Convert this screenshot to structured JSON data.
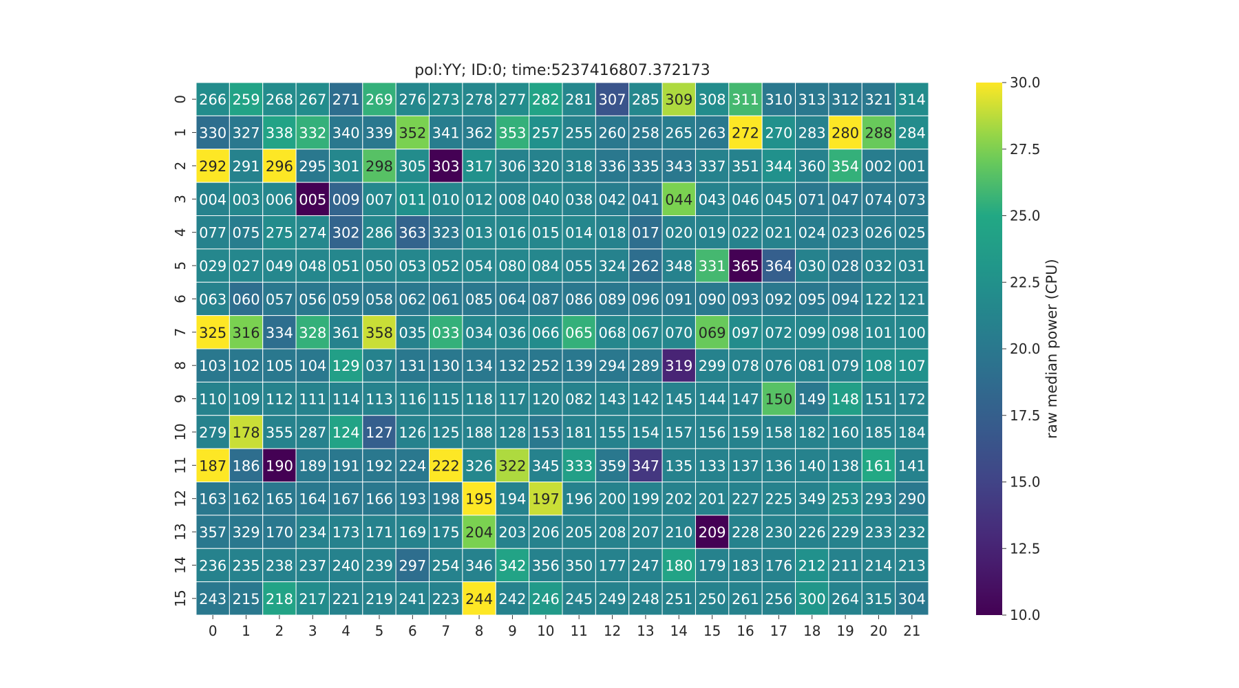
{
  "chart_data": {
    "type": "heatmap",
    "title": "pol:YY; ID:0; time:5237416807.372173",
    "x_tick_labels": [
      "0",
      "1",
      "2",
      "3",
      "4",
      "5",
      "6",
      "7",
      "8",
      "9",
      "10",
      "11",
      "12",
      "13",
      "14",
      "15",
      "16",
      "17",
      "18",
      "19",
      "20",
      "21"
    ],
    "y_tick_labels": [
      "0",
      "1",
      "2",
      "3",
      "4",
      "5",
      "6",
      "7",
      "8",
      "9",
      "10",
      "11",
      "12",
      "13",
      "14",
      "15"
    ],
    "annotations": [
      [
        "266",
        "259",
        "268",
        "267",
        "271",
        "269",
        "276",
        "273",
        "278",
        "277",
        "282",
        "281",
        "307",
        "285",
        "309",
        "308",
        "311",
        "310",
        "313",
        "312",
        "321",
        "314"
      ],
      [
        "330",
        "327",
        "338",
        "332",
        "340",
        "339",
        "352",
        "341",
        "362",
        "353",
        "257",
        "255",
        "260",
        "258",
        "265",
        "263",
        "272",
        "270",
        "283",
        "280",
        "288",
        "284"
      ],
      [
        "292",
        "291",
        "296",
        "295",
        "301",
        "298",
        "305",
        "303",
        "317",
        "306",
        "320",
        "318",
        "336",
        "335",
        "343",
        "337",
        "351",
        "344",
        "360",
        "354",
        "002",
        "001"
      ],
      [
        "004",
        "003",
        "006",
        "005",
        "009",
        "007",
        "011",
        "010",
        "012",
        "008",
        "040",
        "038",
        "042",
        "041",
        "044",
        "043",
        "046",
        "045",
        "071",
        "047",
        "074",
        "073"
      ],
      [
        "077",
        "075",
        "275",
        "274",
        "302",
        "286",
        "363",
        "323",
        "013",
        "016",
        "015",
        "014",
        "018",
        "017",
        "020",
        "019",
        "022",
        "021",
        "024",
        "023",
        "026",
        "025"
      ],
      [
        "029",
        "027",
        "049",
        "048",
        "051",
        "050",
        "053",
        "052",
        "054",
        "080",
        "084",
        "055",
        "324",
        "262",
        "348",
        "331",
        "365",
        "364",
        "030",
        "028",
        "032",
        "031"
      ],
      [
        "063",
        "060",
        "057",
        "056",
        "059",
        "058",
        "062",
        "061",
        "085",
        "064",
        "087",
        "086",
        "089",
        "096",
        "091",
        "090",
        "093",
        "092",
        "095",
        "094",
        "122",
        "121"
      ],
      [
        "325",
        "316",
        "334",
        "328",
        "361",
        "358",
        "035",
        "033",
        "034",
        "036",
        "066",
        "065",
        "068",
        "067",
        "070",
        "069",
        "097",
        "072",
        "099",
        "098",
        "101",
        "100"
      ],
      [
        "103",
        "102",
        "105",
        "104",
        "129",
        "037",
        "131",
        "130",
        "134",
        "132",
        "252",
        "139",
        "294",
        "289",
        "319",
        "299",
        "078",
        "076",
        "081",
        "079",
        "108",
        "107"
      ],
      [
        "110",
        "109",
        "112",
        "111",
        "114",
        "113",
        "116",
        "115",
        "118",
        "117",
        "120",
        "082",
        "143",
        "142",
        "145",
        "144",
        "147",
        "150",
        "149",
        "148",
        "151",
        "172"
      ],
      [
        "279",
        "178",
        "355",
        "287",
        "124",
        "127",
        "126",
        "125",
        "188",
        "128",
        "153",
        "181",
        "155",
        "154",
        "157",
        "156",
        "159",
        "158",
        "182",
        "160",
        "185",
        "184"
      ],
      [
        "187",
        "186",
        "190",
        "189",
        "191",
        "192",
        "224",
        "222",
        "326",
        "322",
        "345",
        "333",
        "359",
        "347",
        "135",
        "133",
        "137",
        "136",
        "140",
        "138",
        "161",
        "141"
      ],
      [
        "163",
        "162",
        "165",
        "164",
        "167",
        "166",
        "193",
        "198",
        "195",
        "194",
        "197",
        "196",
        "200",
        "199",
        "202",
        "201",
        "227",
        "225",
        "349",
        "253",
        "293",
        "290"
      ],
      [
        "357",
        "329",
        "170",
        "234",
        "173",
        "171",
        "169",
        "175",
        "204",
        "203",
        "206",
        "205",
        "208",
        "207",
        "210",
        "209",
        "228",
        "230",
        "226",
        "229",
        "233",
        "232"
      ],
      [
        "236",
        "235",
        "238",
        "237",
        "240",
        "239",
        "297",
        "254",
        "346",
        "342",
        "356",
        "350",
        "177",
        "247",
        "180",
        "179",
        "183",
        "176",
        "212",
        "211",
        "214",
        "213"
      ],
      [
        "243",
        "215",
        "218",
        "217",
        "221",
        "219",
        "241",
        "223",
        "244",
        "242",
        "246",
        "245",
        "249",
        "248",
        "251",
        "250",
        "261",
        "256",
        "300",
        "264",
        "315",
        "304"
      ]
    ],
    "values": [
      [
        22.0,
        24.5,
        22.0,
        22.0,
        19.0,
        25.5,
        21.5,
        22.0,
        21.5,
        22.0,
        24.5,
        21.5,
        16.5,
        21.5,
        28.5,
        22.0,
        26.0,
        20.0,
        20.0,
        20.0,
        20.0,
        22.0
      ],
      [
        19.0,
        20.0,
        24.5,
        25.5,
        20.0,
        20.0,
        27.5,
        20.5,
        20.5,
        25.5,
        22.5,
        21.0,
        20.0,
        20.0,
        20.5,
        20.0,
        30.0,
        22.5,
        21.0,
        30.0,
        27.0,
        22.0
      ],
      [
        30.0,
        21.0,
        30.0,
        20.0,
        21.5,
        26.5,
        22.0,
        10.0,
        22.5,
        21.0,
        21.0,
        21.0,
        20.0,
        20.0,
        20.0,
        21.0,
        21.0,
        22.5,
        21.0,
        25.5,
        20.5,
        20.5
      ],
      [
        21.0,
        21.5,
        21.5,
        10.0,
        18.0,
        21.5,
        22.5,
        21.5,
        21.5,
        21.0,
        21.5,
        21.0,
        20.5,
        20.0,
        27.5,
        21.0,
        21.0,
        21.0,
        20.0,
        20.0,
        20.0,
        20.0
      ],
      [
        21.0,
        20.5,
        22.0,
        21.5,
        18.0,
        21.5,
        18.0,
        20.0,
        21.5,
        21.5,
        21.5,
        21.5,
        21.0,
        19.0,
        21.0,
        21.0,
        21.0,
        21.0,
        20.5,
        20.5,
        20.5,
        20.5
      ],
      [
        21.5,
        21.5,
        21.5,
        21.5,
        21.5,
        21.5,
        21.5,
        21.5,
        21.5,
        21.5,
        21.5,
        21.0,
        21.0,
        19.0,
        21.0,
        26.0,
        10.0,
        17.5,
        21.0,
        20.0,
        21.0,
        21.0
      ],
      [
        21.0,
        19.0,
        20.0,
        20.0,
        20.0,
        20.0,
        20.0,
        20.0,
        20.0,
        20.0,
        20.0,
        20.0,
        20.0,
        20.0,
        20.0,
        20.0,
        20.0,
        20.0,
        20.0,
        20.0,
        21.0,
        21.0
      ],
      [
        30.0,
        27.5,
        19.0,
        25.5,
        21.0,
        29.0,
        21.0,
        25.5,
        21.5,
        21.5,
        22.0,
        25.5,
        21.5,
        21.5,
        21.5,
        27.0,
        22.0,
        21.5,
        21.5,
        21.5,
        21.5,
        21.5
      ],
      [
        20.0,
        20.0,
        20.0,
        20.0,
        24.0,
        21.0,
        20.0,
        20.0,
        20.0,
        20.0,
        20.0,
        20.0,
        20.0,
        20.0,
        12.5,
        21.0,
        21.0,
        21.0,
        21.0,
        21.0,
        22.5,
        22.5
      ],
      [
        21.0,
        21.0,
        21.0,
        21.0,
        21.0,
        21.0,
        21.0,
        21.0,
        21.0,
        21.0,
        21.0,
        21.0,
        21.0,
        21.0,
        21.0,
        21.0,
        21.0,
        26.5,
        20.0,
        24.0,
        21.0,
        21.0
      ],
      [
        21.0,
        29.0,
        21.0,
        21.0,
        24.5,
        17.5,
        21.0,
        21.0,
        21.0,
        21.0,
        20.0,
        21.0,
        21.0,
        21.0,
        21.0,
        21.0,
        21.0,
        21.0,
        21.0,
        21.0,
        21.0,
        21.0
      ],
      [
        30.0,
        19.0,
        10.0,
        20.0,
        20.0,
        20.0,
        20.0,
        30.0,
        21.5,
        28.5,
        21.0,
        24.0,
        20.0,
        14.0,
        21.0,
        21.0,
        21.0,
        21.0,
        21.0,
        21.0,
        25.0,
        21.0
      ],
      [
        20.0,
        20.0,
        20.0,
        20.0,
        20.0,
        20.0,
        20.0,
        20.0,
        30.0,
        21.0,
        29.0,
        21.0,
        21.0,
        21.0,
        21.0,
        21.0,
        21.0,
        21.0,
        21.0,
        22.0,
        21.0,
        20.0
      ],
      [
        20.0,
        20.0,
        20.0,
        21.0,
        21.0,
        21.0,
        21.0,
        21.0,
        27.5,
        21.0,
        21.0,
        21.0,
        21.0,
        21.0,
        21.0,
        10.0,
        21.0,
        21.0,
        21.0,
        21.0,
        21.0,
        21.0
      ],
      [
        21.0,
        21.0,
        21.0,
        21.0,
        21.0,
        21.0,
        19.0,
        21.0,
        21.0,
        24.5,
        21.0,
        21.0,
        21.0,
        21.0,
        24.5,
        21.0,
        21.0,
        21.0,
        22.5,
        21.0,
        21.0,
        21.0
      ],
      [
        20.0,
        20.0,
        24.5,
        22.0,
        21.0,
        21.0,
        21.0,
        21.0,
        30.0,
        21.0,
        23.5,
        21.0,
        21.0,
        21.0,
        21.0,
        21.0,
        21.0,
        21.0,
        23.0,
        21.0,
        21.0,
        20.0
      ]
    ],
    "colorbar": {
      "label": "raw median power (CPU)",
      "min": 10.0,
      "max": 30.0,
      "ticks": [
        "10.0",
        "12.5",
        "15.0",
        "17.5",
        "20.0",
        "22.5",
        "25.0",
        "27.5",
        "30.0"
      ],
      "colormap": "viridis"
    },
    "grid": "white cell borders"
  }
}
